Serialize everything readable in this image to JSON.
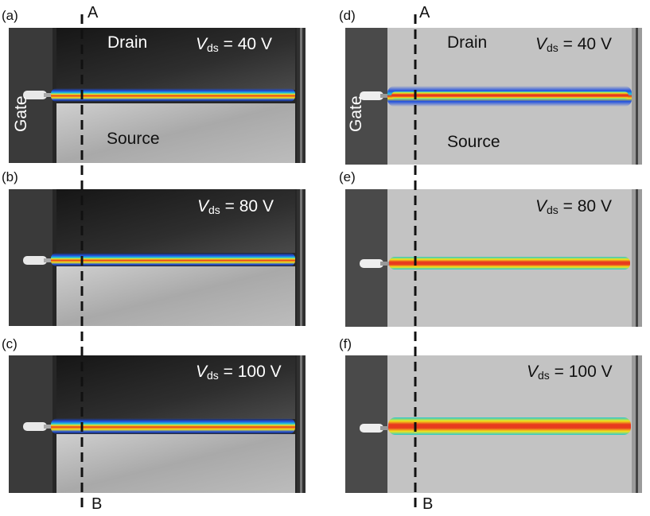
{
  "panels": [
    {
      "letter": "(a)",
      "theme": "dark",
      "vds_value": "= 40 V",
      "drain": "Drain",
      "source": "Source",
      "gate": "Gate"
    },
    {
      "letter": "(b)",
      "theme": "dark",
      "vds_value": "= 80 V"
    },
    {
      "letter": "(c)",
      "theme": "dark",
      "vds_value": "= 100 V"
    },
    {
      "letter": "(d)",
      "theme": "light",
      "vds_value": "= 40 V",
      "drain": "Drain",
      "source": "Source",
      "gate": "Gate"
    },
    {
      "letter": "(e)",
      "theme": "light",
      "vds_value": "= 80 V"
    },
    {
      "letter": "(f)",
      "theme": "light",
      "vds_value": "= 100 V"
    }
  ],
  "vds_symbol": "V",
  "vds_subscript": "ds",
  "cutline": {
    "top_label": "A",
    "bottom_label": "B"
  },
  "colors": {
    "dark_bg": "#2b2b2b",
    "dark_source": "#b9b9b9",
    "light_bg": "#bdbdbd",
    "emission_core": "#e83a1e",
    "emission_mid": "#f2e51a",
    "emission_edge": "#1f4fe0"
  }
}
